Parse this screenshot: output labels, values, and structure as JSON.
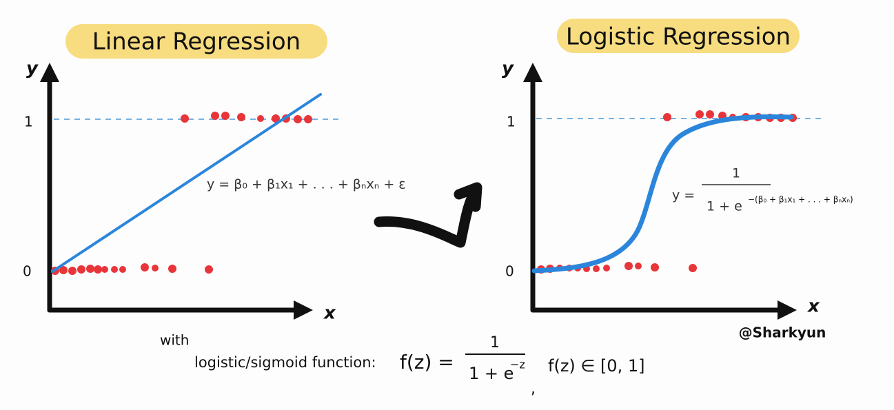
{
  "panels": [
    {
      "title": "Linear Regression",
      "y_label": "y",
      "x_label": "x",
      "tick_high": "1",
      "tick_low": "0",
      "equation": "y = β₀ + β₁x₁ + . . . + βₙxₙ + ε"
    },
    {
      "title": "Logistic Regression",
      "y_label": "y",
      "x_label": "x",
      "tick_high": "1",
      "tick_low": "0",
      "equation": {
        "lhs": "y =",
        "numerator": "1",
        "denominator": "1 + e",
        "exponent": "−(β₀ + β₁x₁ + . . . + βₙxₙ)"
      }
    }
  ],
  "footer": {
    "with": "with",
    "label": "logistic/sigmoid function:",
    "formula": {
      "lhs": "f(z) =",
      "numerator": "1",
      "denominator": "1 + e",
      "exponent": "−z"
    },
    "separator": ",",
    "range": "f(z) ∈ [0, 1]"
  },
  "credit": "@Sharkyun"
}
